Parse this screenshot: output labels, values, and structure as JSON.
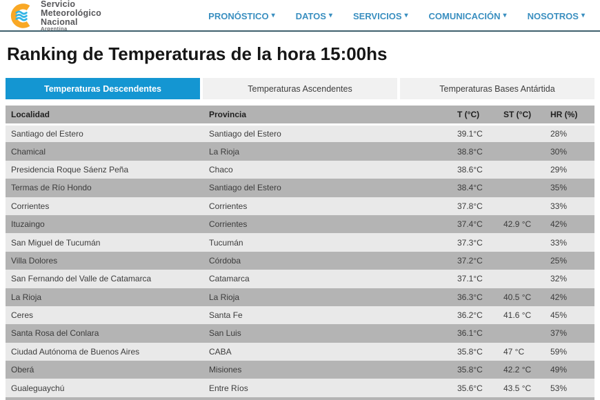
{
  "brand": {
    "line1": "Servicio",
    "line2": "Meteorológico",
    "line3": "Nacional",
    "country": "Argentina"
  },
  "icons": {
    "chevron_down": "▾"
  },
  "nav": {
    "items": [
      {
        "label": "PRONÓSTICO"
      },
      {
        "label": "DATOS"
      },
      {
        "label": "SERVICIOS"
      },
      {
        "label": "COMUNICACIÓN"
      },
      {
        "label": "NOSOTROS"
      }
    ]
  },
  "page": {
    "title": "Ranking de Temperaturas de la hora 15:00hs"
  },
  "tabs": [
    {
      "label": "Temperaturas Descendentes",
      "active": true
    },
    {
      "label": "Temperaturas Ascendentes",
      "active": false
    },
    {
      "label": "Temperaturas Bases Antártida",
      "active": false
    }
  ],
  "table": {
    "columns": [
      "Localidad",
      "Provincia",
      "T (°C)",
      "ST (°C)",
      "HR (%)"
    ],
    "rows": [
      [
        "Santiago del Estero",
        "Santiago del Estero",
        "39.1°C",
        "",
        "28%"
      ],
      [
        "Chamical",
        "La Rioja",
        "38.8°C",
        "",
        "30%"
      ],
      [
        "Presidencia Roque Sáenz Peña",
        "Chaco",
        "38.6°C",
        "",
        "29%"
      ],
      [
        "Termas de Río Hondo",
        "Santiago del Estero",
        "38.4°C",
        "",
        "35%"
      ],
      [
        "Corrientes",
        "Corrientes",
        "37.8°C",
        "",
        "33%"
      ],
      [
        "Ituzaingo",
        "Corrientes",
        "37.4°C",
        "42.9 °C",
        "42%"
      ],
      [
        "San Miguel de Tucumán",
        "Tucumán",
        "37.3°C",
        "",
        "33%"
      ],
      [
        "Villa Dolores",
        "Córdoba",
        "37.2°C",
        "",
        "25%"
      ],
      [
        "San Fernando del Valle de Catamarca",
        "Catamarca",
        "37.1°C",
        "",
        "32%"
      ],
      [
        "La Rioja",
        "La Rioja",
        "36.3°C",
        "40.5 °C",
        "42%"
      ],
      [
        "Ceres",
        "Santa Fe",
        "36.2°C",
        "41.6 °C",
        "45%"
      ],
      [
        "Santa Rosa del Conlara",
        "San Luis",
        "36.1°C",
        "",
        "37%"
      ],
      [
        "Ciudad Autónoma de Buenos Aires",
        "CABA",
        "35.8°C",
        "47 °C",
        "59%"
      ],
      [
        "Oberá",
        "Misiones",
        "35.8°C",
        "42.2 °C",
        "49%"
      ],
      [
        "Gualeguaychú",
        "Entre Ríos",
        "35.6°C",
        "43.5 °C",
        "53%"
      ]
    ]
  },
  "colors": {
    "accent_blue": "#1496d2",
    "nav_blue": "#3a8fc0",
    "row_dark": "#b4b4b4",
    "row_light": "#e9e9e9",
    "header_gray": "#b2b2b2",
    "logo_yellow": "#f9a825",
    "logo_blue": "#33b5e5",
    "divider": "#3e5f6d",
    "tab_inactive": "#f1f1f1"
  }
}
